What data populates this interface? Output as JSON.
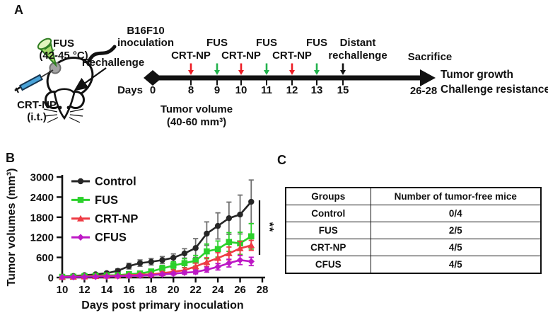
{
  "panel_a": {
    "label": "A",
    "mouse": {
      "fus_line1": "FUS",
      "fus_line2": "(42-45 °C)",
      "crtnp_line1": "CRT-NP",
      "crtnp_line2": "(i.t.)",
      "rechallenge": "Rechallenge"
    },
    "timeline": {
      "inoculation_line1": "B16F10",
      "inoculation_line2": "inoculation",
      "days_label": "Days",
      "day_zero": "0",
      "events": [
        {
          "day": "8",
          "treatment": "CRT-NP",
          "arrow_color": "#ec1c24",
          "label_row": "lower"
        },
        {
          "day": "9",
          "treatment": "FUS",
          "arrow_color": "#22b24c",
          "label_row": "upper"
        },
        {
          "day": "10",
          "treatment": "CRT-NP",
          "arrow_color": "#ec1c24",
          "label_row": "lower"
        },
        {
          "day": "11",
          "treatment": "FUS",
          "arrow_color": "#22b24c",
          "label_row": "upper"
        },
        {
          "day": "12",
          "treatment": "CRT-NP",
          "arrow_color": "#ec1c24",
          "label_row": "lower"
        },
        {
          "day": "13",
          "treatment": "FUS",
          "arrow_color": "#22b24c",
          "label_row": "upper"
        },
        {
          "day": "15",
          "treatment": "",
          "arrow_color": "#111111",
          "label_row": "none"
        }
      ],
      "distant_line1": "Distant",
      "distant_line2": "rechallenge",
      "sacrifice": "Sacrifice",
      "endpoint": "26-28",
      "tumor_volume_line1": "Tumor volume",
      "tumor_volume_line2": "(40-60 mm³)",
      "outcome_line1": "Tumor growth",
      "outcome_line2": "Challenge resistance"
    }
  },
  "panel_b": {
    "label": "B"
  },
  "chart_data": {
    "type": "line",
    "title": "",
    "xlabel": "Days post primary inoculation",
    "ylabel": "Tumor volumes (mm³)",
    "xlim": [
      10,
      28
    ],
    "ylim": [
      0,
      3000
    ],
    "xticks": [
      10,
      12,
      14,
      16,
      18,
      20,
      22,
      24,
      26,
      28
    ],
    "yticks": [
      0,
      600,
      1200,
      1800,
      2400,
      3000
    ],
    "grid": false,
    "legend_position": "top-left",
    "significance": "**",
    "x": [
      10,
      11,
      12,
      13,
      14,
      15,
      16,
      17,
      18,
      19,
      20,
      21,
      22,
      23,
      24,
      25,
      26,
      27
    ],
    "series": [
      {
        "name": "Control",
        "color": "#262626",
        "error_color": "#6f6f6f",
        "marker": "circle",
        "values": [
          30,
          45,
          70,
          95,
          130,
          200,
          340,
          430,
          470,
          520,
          590,
          720,
          880,
          1310,
          1540,
          1770,
          1880,
          2260
        ],
        "errors": [
          15,
          18,
          25,
          30,
          40,
          55,
          85,
          95,
          95,
          105,
          115,
          140,
          280,
          350,
          390,
          480,
          580,
          650
        ]
      },
      {
        "name": "FUS",
        "color": "#2bd12b",
        "error_color": "#2bd12b",
        "marker": "square",
        "values": [
          20,
          25,
          40,
          55,
          65,
          70,
          100,
          120,
          180,
          270,
          360,
          430,
          500,
          780,
          850,
          1060,
          1020,
          1230
        ],
        "errors": [
          8,
          10,
          15,
          20,
          25,
          25,
          35,
          45,
          60,
          90,
          110,
          130,
          160,
          220,
          240,
          280,
          330,
          380
        ]
      },
      {
        "name": "CRT-NP",
        "color": "#ee3b44",
        "error_color": "#ee3b44",
        "marker": "triangle",
        "values": [
          15,
          20,
          30,
          40,
          50,
          55,
          70,
          85,
          95,
          130,
          170,
          220,
          330,
          460,
          580,
          720,
          870,
          960
        ],
        "errors": [
          6,
          8,
          10,
          12,
          15,
          18,
          25,
          30,
          35,
          45,
          55,
          70,
          100,
          130,
          160,
          190,
          210,
          150
        ]
      },
      {
        "name": "CFUS",
        "color": "#bd18c5",
        "error_color": "#bd18c5",
        "marker": "diamond",
        "values": [
          10,
          14,
          18,
          24,
          30,
          40,
          50,
          60,
          70,
          95,
          115,
          145,
          165,
          235,
          320,
          430,
          520,
          480
        ],
        "errors": [
          4,
          5,
          7,
          9,
          11,
          14,
          17,
          20,
          24,
          32,
          38,
          48,
          55,
          75,
          95,
          115,
          135,
          125
        ]
      }
    ]
  },
  "panel_c": {
    "label": "C",
    "table": {
      "headers": [
        "Groups",
        "Number of tumor-free mice"
      ],
      "rows": [
        [
          "Control",
          "0/4"
        ],
        [
          "FUS",
          "2/5"
        ],
        [
          "CRT-NP",
          "4/5"
        ],
        [
          "CFUS",
          "4/5"
        ]
      ]
    }
  }
}
